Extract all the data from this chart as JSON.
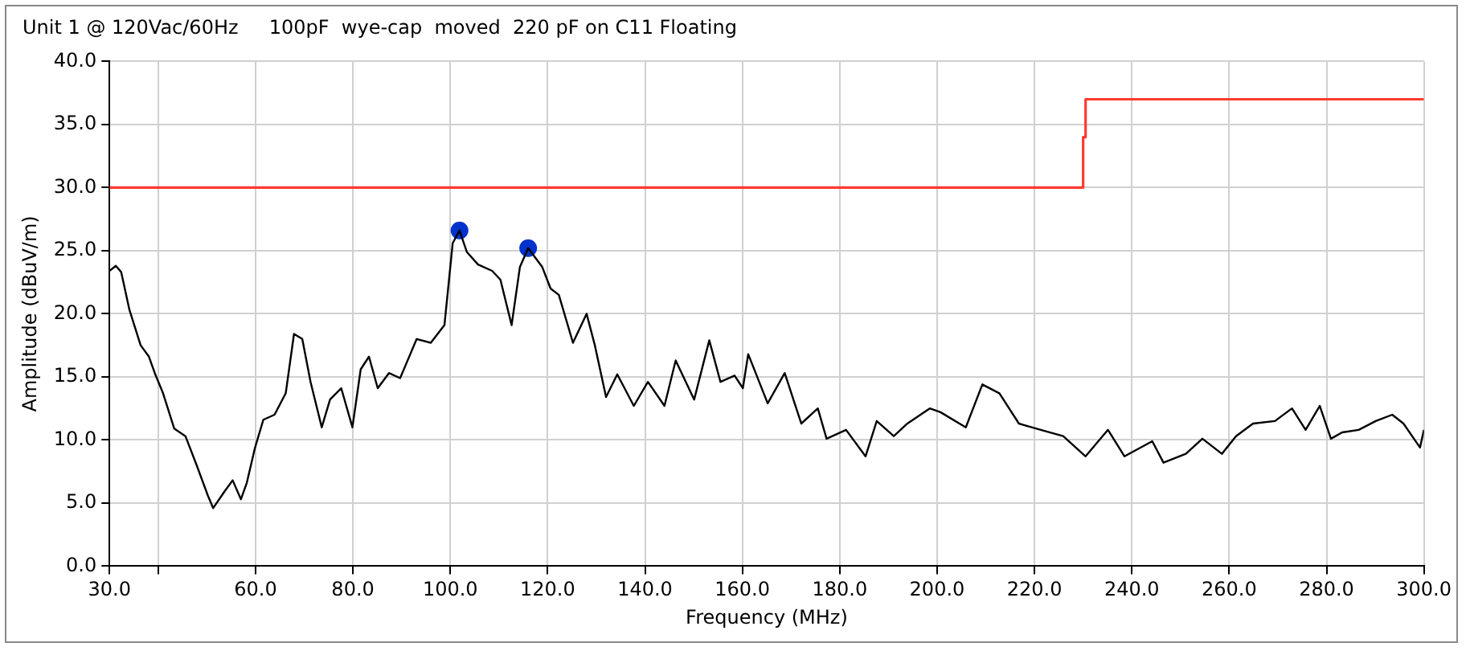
{
  "chart_data": {
    "type": "line",
    "title": "Unit 1 @ 120Vac/60Hz     100pF  wye-cap  moved  220 pF on C11 Floating",
    "xlabel": "Frequency (MHz)",
    "ylabel": "Amplitude (dBuV/m)",
    "xlim": [
      30,
      300
    ],
    "ylim": [
      0,
      40
    ],
    "xticks": [
      {
        "value": 30,
        "label": "30.0"
      },
      {
        "value": 40,
        "label": null
      },
      {
        "value": 60,
        "label": "60.0"
      },
      {
        "value": 80,
        "label": "80.0"
      },
      {
        "value": 100,
        "label": "100.0"
      },
      {
        "value": 120,
        "label": "120.0"
      },
      {
        "value": 140,
        "label": "140.0"
      },
      {
        "value": 160,
        "label": "160.0"
      },
      {
        "value": 180,
        "label": "180.0"
      },
      {
        "value": 200,
        "label": "200.0"
      },
      {
        "value": 220,
        "label": "220.0"
      },
      {
        "value": 240,
        "label": "240.0"
      },
      {
        "value": 260,
        "label": "260.0"
      },
      {
        "value": 280,
        "label": "280.0"
      },
      {
        "value": 300,
        "label": "300.0"
      }
    ],
    "yticks": [
      {
        "value": 0,
        "label": "0.0"
      },
      {
        "value": 5,
        "label": "5.0"
      },
      {
        "value": 10,
        "label": "10.0"
      },
      {
        "value": 15,
        "label": "15.0"
      },
      {
        "value": 20,
        "label": "20.0"
      },
      {
        "value": 25,
        "label": "25.0"
      },
      {
        "value": 30,
        "label": "30.0"
      },
      {
        "value": 35,
        "label": "35.0"
      },
      {
        "value": 40,
        "label": "40.0"
      }
    ],
    "grid": true,
    "legend": false,
    "marker": "none",
    "line_style": "solid",
    "series": [
      {
        "color": "#000000",
        "x": [
          30,
          31.3,
          32.4,
          34.1,
          36.4,
          38.1,
          39.3,
          41,
          43.3,
          45.6,
          47.9,
          50.2,
          51.3,
          53.6,
          55.3,
          57,
          58.2,
          59.9,
          61.6,
          63.9,
          66.2,
          67.9,
          69.6,
          71.3,
          73.6,
          75.3,
          77.6,
          79.9,
          81.6,
          83.3,
          85.1,
          87.4,
          89.7,
          93.1,
          96,
          98.8,
          100.5,
          101.9,
          103.4,
          105.7,
          108.6,
          110.3,
          112.6,
          114.3,
          116,
          118.9,
          120.6,
          122.3,
          125.2,
          128,
          129.7,
          132,
          134.3,
          137.7,
          140.6,
          144,
          146.3,
          150.1,
          153.2,
          155.5,
          158.4,
          160.1,
          161.2,
          165.2,
          168.7,
          172.1,
          175.5,
          177.3,
          181.3,
          185.3,
          187.6,
          191.1,
          193.9,
          198.5,
          200.7,
          205.9,
          209.3,
          212.8,
          216.8,
          221.3,
          225.9,
          230.5,
          235.1,
          238.5,
          244.2,
          246.5,
          251.1,
          254.5,
          258.5,
          261.4,
          264.9,
          269.4,
          272.9,
          275.7,
          278.6,
          280.9,
          283.2,
          286.6,
          290.1,
          293.5,
          295.8,
          299.2,
          300
        ],
        "values": [
          23.4,
          23.8,
          23.3,
          20.3,
          17.5,
          16.6,
          15.3,
          13.7,
          10.9,
          10.3,
          8,
          5.6,
          4.6,
          5.9,
          6.8,
          5.3,
          6.6,
          9.4,
          11.6,
          12,
          13.7,
          18.4,
          18,
          14.6,
          11,
          13.2,
          14.1,
          11,
          15.6,
          16.6,
          14.1,
          15.3,
          14.9,
          18,
          17.7,
          19.1,
          25.6,
          26.6,
          24.9,
          23.9,
          23.4,
          22.7,
          19.1,
          23.7,
          25.2,
          23.7,
          22,
          21.5,
          17.7,
          20,
          17.5,
          13.4,
          15.2,
          12.7,
          14.6,
          12.7,
          16.3,
          13.2,
          17.9,
          14.6,
          15.1,
          14.1,
          16.8,
          12.9,
          15.3,
          11.3,
          12.5,
          10.1,
          10.8,
          8.7,
          11.5,
          10.3,
          11.3,
          12.5,
          12.2,
          11,
          14.4,
          13.7,
          11.3,
          10.8,
          10.3,
          8.7,
          10.8,
          8.7,
          9.9,
          8.2,
          8.9,
          10.1,
          8.9,
          10.3,
          11.3,
          11.5,
          12.5,
          10.8,
          12.7,
          10.1,
          10.6,
          10.8,
          11.5,
          12,
          11.3,
          9.4,
          10.8
        ]
      },
      {
        "type": "line",
        "color": "#ff3b2f",
        "x": [
          30,
          230,
          230,
          230.5,
          230.5,
          300
        ],
        "values": [
          30,
          30,
          34,
          34,
          37,
          37
        ]
      },
      {
        "type": "scatter",
        "color": "#0033cc",
        "marker": "circle",
        "x": [
          101.9,
          116
        ],
        "values": [
          26.6,
          25.2
        ]
      }
    ]
  }
}
